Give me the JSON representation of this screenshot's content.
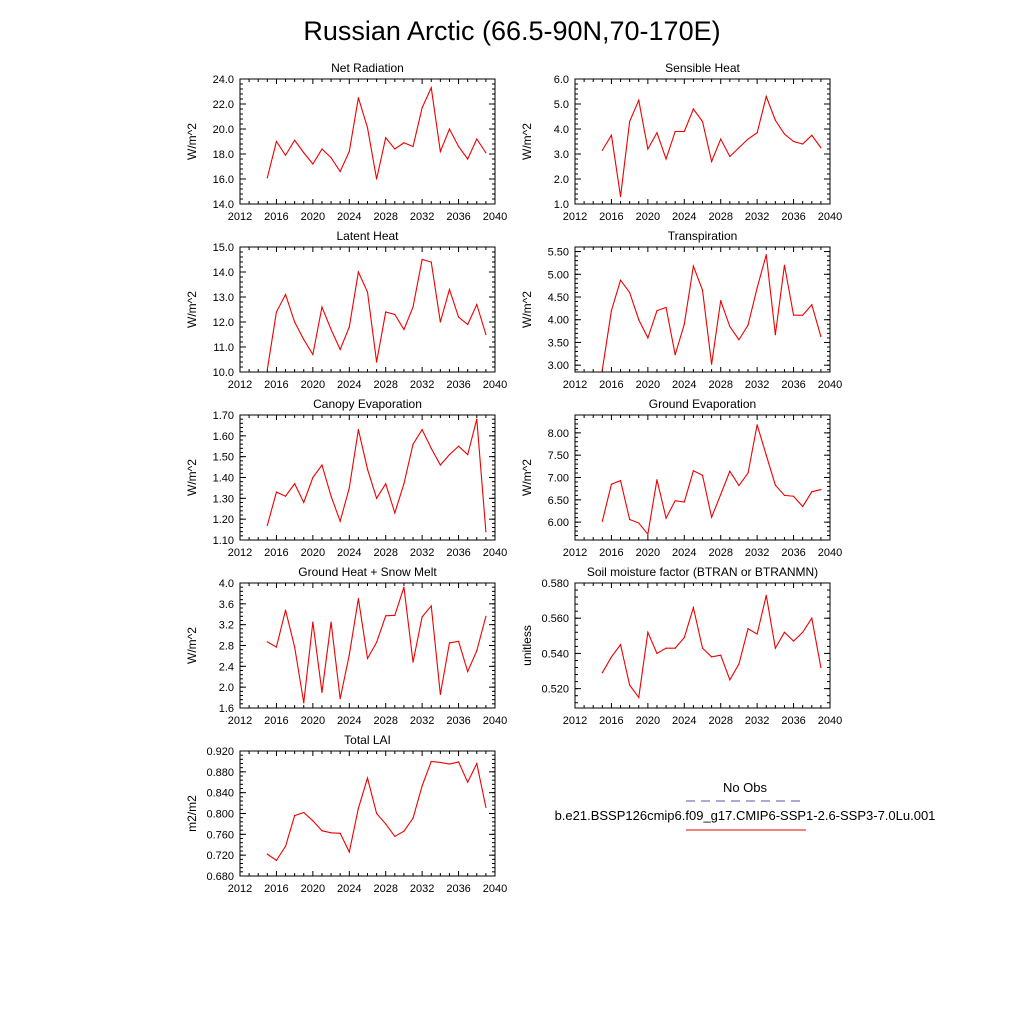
{
  "title": "Russian Arctic (66.5-90N,70-170E)",
  "legend": {
    "obs_label": "No Obs",
    "obs_color": "#5555aa",
    "model_label": "b.e21.BSSP126cmip6.f09_g17.CMIP6-SSP1-2.6-SSP3-7.0Lu.001",
    "model_color": "#ee0000"
  },
  "chart_data": [
    {
      "type": "line",
      "title": "Net Radiation",
      "ylabel": "W/m^2",
      "xlim": [
        2012,
        2040
      ],
      "ylim": [
        14.0,
        24.0
      ],
      "xticks": [
        "2012",
        "2016",
        "2020",
        "2024",
        "2028",
        "2032",
        "2036",
        "2040"
      ],
      "yticks": [
        "14.0",
        "16.0",
        "18.0",
        "20.0",
        "22.0",
        "24.0"
      ],
      "x": [
        2015,
        2016,
        2017,
        2018,
        2019,
        2020,
        2021,
        2022,
        2023,
        2024,
        2025,
        2026,
        2027,
        2028,
        2029,
        2030,
        2031,
        2032,
        2033,
        2034,
        2035,
        2036,
        2037,
        2038,
        2039
      ],
      "series": [
        {
          "values": [
            16.1,
            19.0,
            17.9,
            19.1,
            18.1,
            17.2,
            18.4,
            17.7,
            16.6,
            18.2,
            22.5,
            20.1,
            16.0,
            19.3,
            18.4,
            18.9,
            18.6,
            21.7,
            23.3,
            18.2,
            20.0,
            18.6,
            17.6,
            19.2,
            18.1
          ]
        }
      ]
    },
    {
      "type": "line",
      "title": "Sensible Heat",
      "ylabel": "W/m^2",
      "xlim": [
        2012,
        2040
      ],
      "ylim": [
        1.0,
        6.0
      ],
      "xticks": [
        "2012",
        "2016",
        "2020",
        "2024",
        "2028",
        "2032",
        "2036",
        "2040"
      ],
      "yticks": [
        "1.0",
        "2.0",
        "3.0",
        "4.0",
        "5.0",
        "6.0"
      ],
      "x": [
        2015,
        2016,
        2017,
        2018,
        2019,
        2020,
        2021,
        2022,
        2023,
        2024,
        2025,
        2026,
        2027,
        2028,
        2029,
        2030,
        2031,
        2032,
        2033,
        2034,
        2035,
        2036,
        2037,
        2038,
        2039
      ],
      "series": [
        {
          "values": [
            3.15,
            3.75,
            1.3,
            4.3,
            5.15,
            3.2,
            3.85,
            2.8,
            3.9,
            3.9,
            4.8,
            4.3,
            2.7,
            3.6,
            2.9,
            3.25,
            3.6,
            3.85,
            5.3,
            4.35,
            3.8,
            3.5,
            3.4,
            3.75,
            3.25
          ]
        }
      ]
    },
    {
      "type": "line",
      "title": "Latent Heat",
      "ylabel": "W/m^2",
      "xlim": [
        2012,
        2040
      ],
      "ylim": [
        10.0,
        15.0
      ],
      "xticks": [
        "2012",
        "2016",
        "2020",
        "2024",
        "2028",
        "2032",
        "2036",
        "2040"
      ],
      "yticks": [
        "10.0",
        "11.0",
        "12.0",
        "13.0",
        "14.0",
        "15.0"
      ],
      "x": [
        2015,
        2016,
        2017,
        2018,
        2019,
        2020,
        2021,
        2022,
        2023,
        2024,
        2025,
        2026,
        2027,
        2028,
        2029,
        2030,
        2031,
        2032,
        2033,
        2034,
        2035,
        2036,
        2037,
        2038,
        2039
      ],
      "series": [
        {
          "values": [
            10.1,
            12.4,
            13.1,
            12.0,
            11.3,
            10.7,
            12.6,
            11.7,
            10.9,
            11.8,
            14.0,
            13.2,
            10.4,
            12.4,
            12.3,
            11.7,
            12.6,
            14.5,
            14.4,
            12.0,
            13.3,
            12.2,
            11.9,
            12.7,
            11.5
          ]
        }
      ]
    },
    {
      "type": "line",
      "title": "Transpiration",
      "ylabel": "W/m^2",
      "xlim": [
        2012,
        2040
      ],
      "ylim": [
        2.85,
        5.6
      ],
      "xticks": [
        "2012",
        "2016",
        "2020",
        "2024",
        "2028",
        "2032",
        "2036",
        "2040"
      ],
      "yticks": [
        "3.00",
        "3.50",
        "4.00",
        "4.50",
        "5.00",
        "5.50"
      ],
      "x": [
        2015,
        2016,
        2017,
        2018,
        2019,
        2020,
        2021,
        2022,
        2023,
        2024,
        2025,
        2026,
        2027,
        2028,
        2029,
        2030,
        2031,
        2032,
        2033,
        2034,
        2035,
        2036,
        2037,
        2038,
        2039
      ],
      "series": [
        {
          "values": [
            2.9,
            4.2,
            4.87,
            4.6,
            4.0,
            3.6,
            4.2,
            4.27,
            3.23,
            3.9,
            5.18,
            4.65,
            3.02,
            4.42,
            3.85,
            3.56,
            3.88,
            4.7,
            5.43,
            3.67,
            5.2,
            4.1,
            4.1,
            4.33,
            3.63
          ]
        }
      ]
    },
    {
      "type": "line",
      "title": "Canopy Evaporation",
      "ylabel": "W/m^2",
      "xlim": [
        2012,
        2040
      ],
      "ylim": [
        1.1,
        1.7
      ],
      "xticks": [
        "2012",
        "2016",
        "2020",
        "2024",
        "2028",
        "2032",
        "2036",
        "2040"
      ],
      "yticks": [
        "1.10",
        "1.20",
        "1.30",
        "1.40",
        "1.50",
        "1.60",
        "1.70"
      ],
      "x": [
        2015,
        2016,
        2017,
        2018,
        2019,
        2020,
        2021,
        2022,
        2023,
        2024,
        2025,
        2026,
        2027,
        2028,
        2029,
        2030,
        2031,
        2032,
        2033,
        2034,
        2035,
        2036,
        2037,
        2038,
        2039
      ],
      "series": [
        {
          "values": [
            1.17,
            1.33,
            1.31,
            1.37,
            1.28,
            1.4,
            1.46,
            1.31,
            1.19,
            1.35,
            1.63,
            1.44,
            1.3,
            1.37,
            1.23,
            1.37,
            1.56,
            1.63,
            1.54,
            1.46,
            1.51,
            1.55,
            1.51,
            1.68,
            1.14
          ]
        }
      ]
    },
    {
      "type": "line",
      "title": "Ground Evaporation",
      "ylabel": "W/m^2",
      "xlim": [
        2012,
        2040
      ],
      "ylim": [
        5.6,
        8.4
      ],
      "xticks": [
        "2012",
        "2016",
        "2020",
        "2024",
        "2028",
        "2032",
        "2036",
        "2040"
      ],
      "yticks": [
        "6.00",
        "6.50",
        "7.00",
        "7.50",
        "8.00"
      ],
      "x": [
        2015,
        2016,
        2017,
        2018,
        2019,
        2020,
        2021,
        2022,
        2023,
        2024,
        2025,
        2026,
        2027,
        2028,
        2029,
        2030,
        2031,
        2032,
        2033,
        2034,
        2035,
        2036,
        2037,
        2038,
        2039
      ],
      "series": [
        {
          "values": [
            6.02,
            6.85,
            6.93,
            6.06,
            5.98,
            5.73,
            6.95,
            6.09,
            6.48,
            6.45,
            7.15,
            7.05,
            6.11,
            6.62,
            7.14,
            6.82,
            7.1,
            8.18,
            7.5,
            6.83,
            6.6,
            6.58,
            6.35,
            6.68,
            6.73
          ]
        }
      ]
    },
    {
      "type": "line",
      "title": "Ground Heat + Snow Melt",
      "ylabel": "W/m^2",
      "xlim": [
        2012,
        2040
      ],
      "ylim": [
        1.6,
        4.0
      ],
      "xticks": [
        "2012",
        "2016",
        "2020",
        "2024",
        "2028",
        "2032",
        "2036",
        "2040"
      ],
      "yticks": [
        "1.6",
        "2.0",
        "2.4",
        "2.8",
        "3.2",
        "3.6",
        "4.0"
      ],
      "x": [
        2015,
        2016,
        2017,
        2018,
        2019,
        2020,
        2021,
        2022,
        2023,
        2024,
        2025,
        2026,
        2027,
        2028,
        2029,
        2030,
        2031,
        2032,
        2033,
        2034,
        2035,
        2036,
        2037,
        2038,
        2039
      ],
      "series": [
        {
          "values": [
            2.87,
            2.77,
            3.48,
            2.77,
            1.7,
            3.25,
            1.9,
            3.25,
            1.78,
            2.62,
            3.7,
            2.55,
            2.86,
            3.37,
            3.38,
            3.92,
            2.48,
            3.35,
            3.56,
            1.86,
            2.85,
            2.88,
            2.3,
            2.7,
            3.36
          ]
        }
      ]
    },
    {
      "type": "line",
      "title": "Soil moisture factor (BTRAN or BTRANMN)",
      "ylabel": "unitless",
      "xlim": [
        2012,
        2040
      ],
      "ylim": [
        0.509,
        0.58
      ],
      "xticks": [
        "2012",
        "2016",
        "2020",
        "2024",
        "2028",
        "2032",
        "2036",
        "2040"
      ],
      "yticks": [
        "0.520",
        "0.540",
        "0.560",
        "0.580"
      ],
      "x": [
        2015,
        2016,
        2017,
        2018,
        2019,
        2020,
        2021,
        2022,
        2023,
        2024,
        2025,
        2026,
        2027,
        2028,
        2029,
        2030,
        2031,
        2032,
        2033,
        2034,
        2035,
        2036,
        2037,
        2038,
        2039
      ],
      "series": [
        {
          "values": [
            0.529,
            0.538,
            0.545,
            0.522,
            0.515,
            0.552,
            0.54,
            0.543,
            0.543,
            0.549,
            0.566,
            0.543,
            0.538,
            0.539,
            0.525,
            0.534,
            0.554,
            0.551,
            0.573,
            0.543,
            0.552,
            0.547,
            0.552,
            0.56,
            0.532
          ]
        }
      ]
    },
    {
      "type": "line",
      "title": "Total LAI",
      "ylabel": "m2/m2",
      "xlim": [
        2012,
        2040
      ],
      "ylim": [
        0.68,
        0.92
      ],
      "xticks": [
        "2012",
        "2016",
        "2020",
        "2024",
        "2028",
        "2032",
        "2036",
        "2040"
      ],
      "yticks": [
        "0.680",
        "0.720",
        "0.760",
        "0.800",
        "0.840",
        "0.880",
        "0.920"
      ],
      "x": [
        2015,
        2016,
        2017,
        2018,
        2019,
        2020,
        2021,
        2022,
        2023,
        2024,
        2025,
        2026,
        2027,
        2028,
        2029,
        2030,
        2031,
        2032,
        2033,
        2034,
        2035,
        2036,
        2037,
        2038,
        2039
      ],
      "series": [
        {
          "values": [
            0.722,
            0.71,
            0.737,
            0.796,
            0.802,
            0.786,
            0.767,
            0.763,
            0.762,
            0.726,
            0.81,
            0.868,
            0.8,
            0.78,
            0.756,
            0.766,
            0.791,
            0.853,
            0.9,
            0.898,
            0.895,
            0.899,
            0.86,
            0.896,
            0.812
          ]
        }
      ]
    }
  ]
}
